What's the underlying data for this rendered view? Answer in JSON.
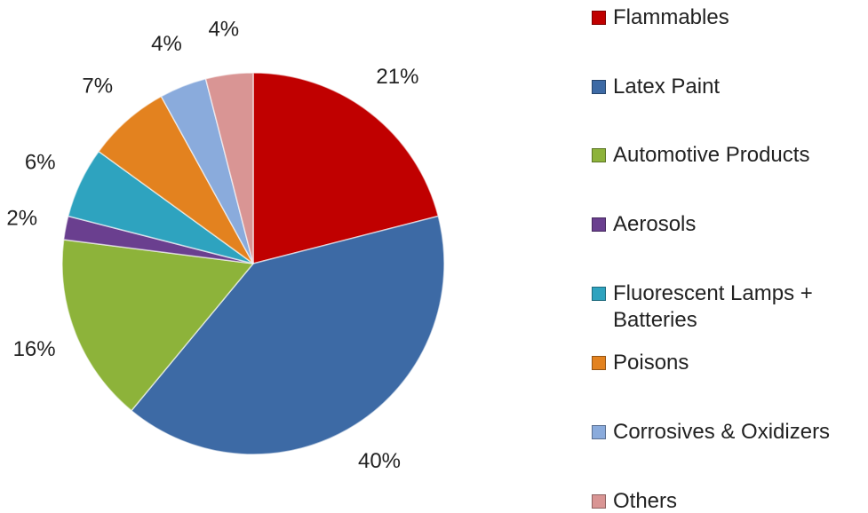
{
  "chart_data": {
    "type": "pie",
    "categories": [
      "Flammables",
      "Latex Paint",
      "Automotive Products",
      "Aerosols",
      "Fluorescent Lamps + Batteries",
      "Poisons",
      "Corrosives & Oxidizers",
      "Others"
    ],
    "values": [
      21,
      40,
      16,
      2,
      6,
      7,
      4,
      4
    ],
    "value_labels": [
      "21%",
      "40%",
      "16%",
      "2%",
      "6%",
      "7%",
      "4%",
      "4%"
    ],
    "colors": [
      "#c00000",
      "#3d6aa5",
      "#8db33a",
      "#6a3f8f",
      "#2ea3bf",
      "#e3821f",
      "#8aabdc",
      "#d99594"
    ],
    "legend": "right"
  }
}
